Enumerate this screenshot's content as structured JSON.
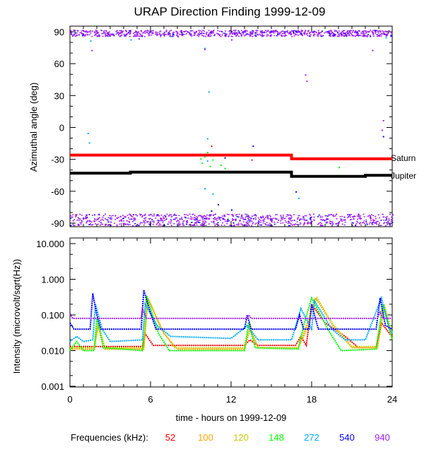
{
  "chart_data": [
    {
      "type": "scatter",
      "title": "URAP Direction Finding  1999-12-09",
      "ylabel": "Azimuthal angle (deg)",
      "xlim": [
        0,
        24
      ],
      "ylim": [
        -90,
        90
      ],
      "yticks": [
        90,
        60,
        30,
        0,
        -30,
        -60,
        -90
      ],
      "lines": [
        {
          "name": "Saturn",
          "color": "#ff0000",
          "points": [
            [
              0,
              -26
            ],
            [
              16.5,
              -26
            ],
            [
              16.5,
              -29.5
            ],
            [
              24,
              -29.5
            ]
          ]
        },
        {
          "name": "Jupiter",
          "color": "#000000",
          "points": [
            [
              0,
              -43
            ],
            [
              4.5,
              -43
            ],
            [
              4.5,
              -42
            ],
            [
              16.5,
              -42
            ],
            [
              16.5,
              -46
            ],
            [
              22,
              -46
            ],
            [
              22,
              -45
            ],
            [
              24,
              -45
            ]
          ]
        }
      ],
      "bands": [
        {
          "color": "#a020f0",
          "y_range": [
            86,
            92
          ],
          "x_range": [
            0,
            24
          ]
        },
        {
          "color": "#a020f0",
          "y_range": [
            -92,
            -81
          ],
          "x_range": [
            0,
            24
          ]
        }
      ],
      "points": [
        {
          "color": "#00aaff",
          "values": [
            [
              1.3,
              -5
            ],
            [
              1.4,
              -14
            ],
            [
              10,
              -57
            ],
            [
              10.2,
              -10
            ],
            [
              10.3,
              34
            ],
            [
              10,
              75
            ],
            [
              4.5,
              83
            ],
            [
              1.5,
              82
            ],
            [
              23.5,
              85
            ],
            [
              10.6,
              -62
            ],
            [
              10.2,
              -31
            ],
            [
              17,
              -66
            ]
          ]
        },
        {
          "color": "#00ff00",
          "values": [
            [
              9.8,
              -33
            ],
            [
              10,
              -27
            ],
            [
              10.2,
              -23
            ],
            [
              10.4,
              -36
            ],
            [
              11.2,
              -35
            ],
            [
              11.5,
              -38
            ],
            [
              20,
              -37
            ],
            [
              9.7,
              -29
            ],
            [
              10.6,
              -30
            ]
          ]
        },
        {
          "color": "#0000ff",
          "values": [
            [
              10,
              -85
            ],
            [
              10.5,
              -78
            ],
            [
              11,
              -72
            ],
            [
              12,
              -77
            ],
            [
              13.2,
              -83
            ],
            [
              13.6,
              -17
            ],
            [
              16.8,
              -60
            ],
            [
              23.3,
              -8
            ],
            [
              11.5,
              -28
            ]
          ]
        },
        {
          "color": "#a020f0",
          "values": [
            [
              1.6,
              73
            ],
            [
              5.1,
              84
            ],
            [
              10,
              74
            ],
            [
              12,
              83
            ],
            [
              17.5,
              50
            ],
            [
              17.6,
              44
            ],
            [
              22.5,
              73
            ],
            [
              23.2,
              -2
            ],
            [
              23.3,
              7
            ],
            [
              8,
              86
            ],
            [
              20,
              87
            ]
          ]
        },
        {
          "color": "#ff0000",
          "values": [
            [
              10.5,
              -17
            ],
            [
              13.5,
              -30
            ]
          ]
        }
      ]
    },
    {
      "type": "line",
      "xlabel": "time - hours on 1999-12-09",
      "ylabel": "Intensity (microvolt/sqrt(Hz))",
      "xlim": [
        0,
        24
      ],
      "ylim": [
        0.001,
        10
      ],
      "yscale": "log",
      "xticks": [
        "0",
        "6",
        "12",
        "18",
        "24"
      ],
      "yticks": [
        "10.000",
        "1.000",
        "0.100",
        "0.010",
        "0.001"
      ],
      "legend_title": "Frequencies (kHz):",
      "series": [
        {
          "name": "52",
          "color": "#ff0000",
          "values": [
            [
              0,
              0.013
            ],
            [
              5.4,
              0.013
            ],
            [
              5.6,
              0.03
            ],
            [
              6.2,
              0.014
            ],
            [
              13,
              0.014
            ],
            [
              13.4,
              0.02
            ],
            [
              14,
              0.014
            ],
            [
              16.8,
              0.014
            ],
            [
              17.2,
              0.025
            ],
            [
              17.6,
              0.014
            ],
            [
              18,
              0.2
            ],
            [
              19,
              0.06
            ],
            [
              20.5,
              0.025
            ],
            [
              21.5,
              0.012
            ],
            [
              22.8,
              0.012
            ],
            [
              23.2,
              0.06
            ],
            [
              23.8,
              0.03
            ],
            [
              24,
              0.025
            ]
          ]
        },
        {
          "name": "100",
          "color": "#ffa500",
          "values": [
            [
              0,
              0.011
            ],
            [
              1.8,
              0.011
            ],
            [
              2.1,
              0.05
            ],
            [
              2.6,
              0.011
            ],
            [
              5.5,
              0.011
            ],
            [
              5.8,
              0.3
            ],
            [
              7,
              0.03
            ],
            [
              8,
              0.011
            ],
            [
              13,
              0.011
            ],
            [
              13.4,
              0.04
            ],
            [
              14,
              0.012
            ],
            [
              17,
              0.012
            ],
            [
              17.5,
              0.03
            ],
            [
              18.3,
              0.3
            ],
            [
              19.6,
              0.05
            ],
            [
              21,
              0.012
            ],
            [
              22.9,
              0.012
            ],
            [
              23.4,
              0.15
            ],
            [
              24,
              0.02
            ]
          ]
        },
        {
          "name": "120",
          "color": "#cccc00",
          "values": [
            [
              0,
              0.012
            ],
            [
              1.8,
              0.012
            ],
            [
              2.1,
              0.06
            ],
            [
              2.6,
              0.012
            ],
            [
              5.5,
              0.012
            ],
            [
              5.8,
              0.3
            ],
            [
              6.8,
              0.04
            ],
            [
              7.8,
              0.012
            ],
            [
              13,
              0.012
            ],
            [
              13.4,
              0.05
            ],
            [
              14,
              0.012
            ],
            [
              17,
              0.012
            ],
            [
              17.5,
              0.04
            ],
            [
              18.4,
              0.3
            ],
            [
              19.5,
              0.06
            ],
            [
              21,
              0.013
            ],
            [
              22.9,
              0.013
            ],
            [
              23.4,
              0.2
            ],
            [
              24,
              0.03
            ]
          ]
        },
        {
          "name": "148",
          "color": "#00ff00",
          "values": [
            [
              0,
              0.01
            ],
            [
              0.5,
              0.018
            ],
            [
              1,
              0.01
            ],
            [
              1.8,
              0.01
            ],
            [
              2,
              0.08
            ],
            [
              2.5,
              0.012
            ],
            [
              5.4,
              0.01
            ],
            [
              5.7,
              0.35
            ],
            [
              6.6,
              0.03
            ],
            [
              7.4,
              0.01
            ],
            [
              13,
              0.01
            ],
            [
              13.3,
              0.06
            ],
            [
              13.8,
              0.012
            ],
            [
              17,
              0.011
            ],
            [
              17.4,
              0.05
            ],
            [
              18,
              0.3
            ],
            [
              19.2,
              0.04
            ],
            [
              20.2,
              0.01
            ],
            [
              22.8,
              0.011
            ],
            [
              23.3,
              0.2
            ],
            [
              24,
              0.02
            ]
          ]
        },
        {
          "name": "272",
          "color": "#00aaff",
          "values": [
            [
              0,
              0.018
            ],
            [
              0.5,
              0.025
            ],
            [
              1,
              0.018
            ],
            [
              1.7,
              0.02
            ],
            [
              1.9,
              0.2
            ],
            [
              2.4,
              0.04
            ],
            [
              3,
              0.018
            ],
            [
              5.4,
              0.02
            ],
            [
              5.6,
              0.2
            ],
            [
              6.5,
              0.05
            ],
            [
              7.5,
              0.025
            ],
            [
              12,
              0.022
            ],
            [
              13.2,
              0.05
            ],
            [
              14,
              0.02
            ],
            [
              16.5,
              0.02
            ],
            [
              17.2,
              0.15
            ],
            [
              18,
              0.04
            ],
            [
              18.2,
              0.25
            ],
            [
              19.5,
              0.04
            ],
            [
              20.5,
              0.02
            ],
            [
              22,
              0.02
            ],
            [
              23.2,
              0.3
            ],
            [
              23.8,
              0.04
            ],
            [
              24,
              0.03
            ]
          ]
        },
        {
          "name": "540",
          "color": "#0000ff",
          "values": [
            [
              0,
              0.06
            ],
            [
              0.3,
              0.04
            ],
            [
              1.5,
              0.04
            ],
            [
              1.7,
              0.4
            ],
            [
              2,
              0.1
            ],
            [
              2.3,
              0.04
            ],
            [
              5.3,
              0.04
            ],
            [
              5.5,
              0.5
            ],
            [
              5.9,
              0.15
            ],
            [
              6.4,
              0.04
            ],
            [
              13,
              0.04
            ],
            [
              13.2,
              0.1
            ],
            [
              13.5,
              0.04
            ],
            [
              16.8,
              0.04
            ],
            [
              17.1,
              0.1
            ],
            [
              17.4,
              0.04
            ],
            [
              17.8,
              0.04
            ],
            [
              18,
              0.2
            ],
            [
              18.5,
              0.04
            ],
            [
              22.8,
              0.04
            ],
            [
              23.1,
              0.3
            ],
            [
              23.5,
              0.05
            ],
            [
              24,
              0.04
            ]
          ]
        },
        {
          "name": "940",
          "color": "#a020f0",
          "values": [
            [
              0,
              0.11
            ],
            [
              0.2,
              0.08
            ],
            [
              5.3,
              0.08
            ],
            [
              5.4,
              0.15
            ],
            [
              5.7,
              0.08
            ],
            [
              13.2,
              0.08
            ],
            [
              13.3,
              0.1
            ],
            [
              13.5,
              0.08
            ],
            [
              22.9,
              0.08
            ],
            [
              23.1,
              0.12
            ],
            [
              23.3,
              0.08
            ],
            [
              24,
              0.08
            ]
          ]
        }
      ]
    }
  ],
  "labels": {
    "saturn": "Saturn",
    "jupiter": "Jupiter"
  }
}
